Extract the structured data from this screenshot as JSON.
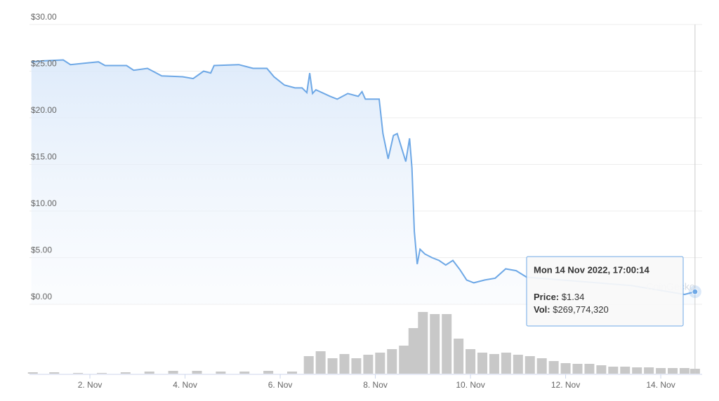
{
  "chart_data": {
    "type": "line",
    "xlim": [
      0.73,
      14.87
    ],
    "xticks": [
      {
        "value": 2,
        "label": "2. Nov"
      },
      {
        "value": 4,
        "label": "4. Nov"
      },
      {
        "value": 6,
        "label": "6. Nov"
      },
      {
        "value": 8,
        "label": "8. Nov"
      },
      {
        "value": 10,
        "label": "10. Nov"
      },
      {
        "value": 12,
        "label": "12. Nov"
      },
      {
        "value": 14,
        "label": "14. Nov"
      }
    ],
    "ylim": [
      0,
      30
    ],
    "yticks": [
      {
        "value": 0,
        "label": "$0.00"
      },
      {
        "value": 5,
        "label": "$5.00"
      },
      {
        "value": 10,
        "label": "$10.00"
      },
      {
        "value": 15,
        "label": "$15.00"
      },
      {
        "value": 20,
        "label": "$20.00"
      },
      {
        "value": 25,
        "label": "$25.00"
      },
      {
        "value": 30,
        "label": "$30.00"
      }
    ],
    "y2lim": [
      0,
      3600000000
    ],
    "grid": true,
    "series": [
      {
        "color": "#6ea8e6",
        "x": [
          0.77,
          1.0,
          1.44,
          1.59,
          2.18,
          2.32,
          2.77,
          2.92,
          3.21,
          3.51,
          3.95,
          4.17,
          4.39,
          4.54,
          4.61,
          5.13,
          5.28,
          5.43,
          5.72,
          5.87,
          6.09,
          6.31,
          6.46,
          6.56,
          6.62,
          6.68,
          6.75,
          7.05,
          7.2,
          7.42,
          7.64,
          7.72,
          7.79,
          8.08,
          8.16,
          8.27,
          8.38,
          8.46,
          8.55,
          8.64,
          8.72,
          8.77,
          8.82,
          8.88,
          8.94,
          9.04,
          9.19,
          9.34,
          9.48,
          9.63,
          9.78,
          9.92,
          10.07,
          10.3,
          10.52,
          10.74,
          10.96,
          11.18,
          11.92,
          12.66,
          13.39,
          14.5,
          14.72
        ],
        "values": [
          26.0,
          26.1,
          26.2,
          25.7,
          26.0,
          25.6,
          25.6,
          25.1,
          25.3,
          24.5,
          24.4,
          24.2,
          25.0,
          24.8,
          25.6,
          25.7,
          25.5,
          25.3,
          25.3,
          24.4,
          23.5,
          23.2,
          23.2,
          22.7,
          24.8,
          22.6,
          23.0,
          22.3,
          22.0,
          22.6,
          22.3,
          22.8,
          22.0,
          22.0,
          18.3,
          15.6,
          18.1,
          18.3,
          16.8,
          15.3,
          17.8,
          14.6,
          7.8,
          4.3,
          5.9,
          5.4,
          5.0,
          4.7,
          4.2,
          4.7,
          3.7,
          2.6,
          2.3,
          2.6,
          2.8,
          3.8,
          3.6,
          2.9,
          2.6,
          2.3,
          2.0,
          1.05,
          1.34
        ]
      },
      {
        "color": "#c8c8c8",
        "axis": "y2",
        "x": [
          0.8,
          1.25,
          1.75,
          2.25,
          2.75,
          3.25,
          3.75,
          4.25,
          4.75,
          5.25,
          5.75,
          6.25,
          6.6,
          6.85,
          7.1,
          7.35,
          7.6,
          7.85,
          8.1,
          8.35,
          8.6,
          8.8,
          9.0,
          9.25,
          9.5,
          9.75,
          10.0,
          10.25,
          10.5,
          10.75,
          11.0,
          11.25,
          11.5,
          11.75,
          12.0,
          12.25,
          12.5,
          12.75,
          13.0,
          13.25,
          13.5,
          13.75,
          14.0,
          14.25,
          14.5,
          14.72
        ],
        "values": [
          77000000,
          77000000,
          39000000,
          39000000,
          77000000,
          116000000,
          155000000,
          155000000,
          116000000,
          116000000,
          155000000,
          116000000,
          968000000,
          1238000000,
          851000000,
          1084000000,
          851000000,
          1045000000,
          1161000000,
          1355000000,
          1548000000,
          2516000000,
          3406000000,
          3290000000,
          3290000000,
          1935000000,
          1355000000,
          1161000000,
          1084000000,
          1161000000,
          1045000000,
          968000000,
          851000000,
          697000000,
          581000000,
          542000000,
          542000000,
          464000000,
          387000000,
          387000000,
          348000000,
          348000000,
          310000000,
          310000000,
          310000000,
          269774320
        ]
      }
    ],
    "watermark": "CoinGecko",
    "tooltip": {
      "title": "Mon 14 Nov 2022, 17:00:14",
      "price_label": "Price:",
      "price": "$1.34",
      "vol_label": "Vol:",
      "vol": "$269,774,320"
    }
  }
}
